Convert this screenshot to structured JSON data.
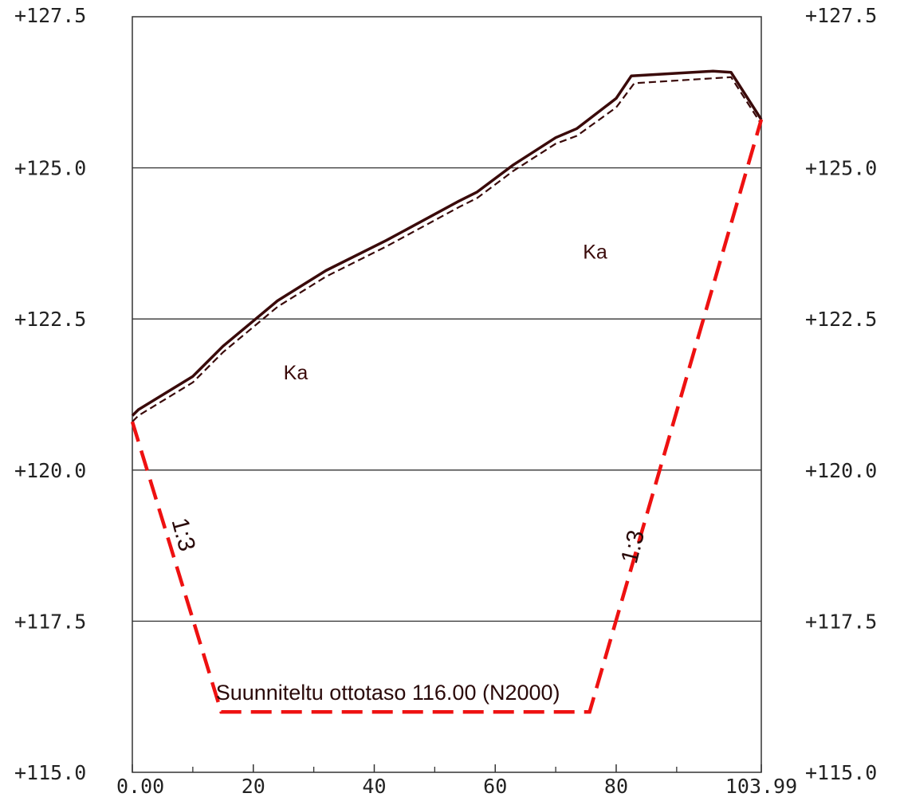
{
  "chart_data": {
    "type": "line",
    "x_range": [
      0,
      103.99
    ],
    "y_range": [
      115.0,
      127.5
    ],
    "y_ticks": [
      {
        "value": 127.5,
        "label": "+127.5"
      },
      {
        "value": 125.0,
        "label": "+125.0"
      },
      {
        "value": 122.5,
        "label": "+122.5"
      },
      {
        "value": 120.0,
        "label": "+120.0"
      },
      {
        "value": 117.5,
        "label": "+117.5"
      },
      {
        "value": 115.0,
        "label": "+115.0"
      }
    ],
    "x_ticks": [
      {
        "value": 0,
        "label": "0.00"
      },
      {
        "value": 20,
        "label": "20"
      },
      {
        "value": 40,
        "label": "40"
      },
      {
        "value": 60,
        "label": "60"
      },
      {
        "value": 80,
        "label": "80"
      },
      {
        "value": 103.99,
        "label": "103.99"
      }
    ],
    "x_minor_ticks": [
      10,
      30,
      50,
      70,
      90
    ],
    "ground_surface": {
      "x": [
        0,
        1,
        10,
        15,
        24,
        32,
        42,
        54,
        57,
        63,
        70,
        73.5,
        80,
        82.5,
        96,
        99,
        103.99
      ],
      "y": [
        120.9,
        121.0,
        121.55,
        122.05,
        122.8,
        123.3,
        123.8,
        124.45,
        124.6,
        125.05,
        125.5,
        125.65,
        126.15,
        126.52,
        126.6,
        126.58,
        125.8
      ]
    },
    "ground_surface_lower": {
      "x": [
        0,
        1,
        10,
        15,
        24,
        32,
        42,
        54,
        57,
        63,
        70,
        73.5,
        80,
        83,
        99,
        104
      ],
      "y": [
        120.8,
        120.9,
        121.45,
        121.95,
        122.7,
        123.2,
        123.7,
        124.35,
        124.5,
        124.95,
        125.4,
        125.53,
        126.0,
        126.4,
        126.5,
        125.72
      ]
    },
    "excavation_outline": {
      "x": [
        0,
        14.7,
        75.6,
        103.99
      ],
      "y": [
        120.8,
        116.0,
        116.0,
        125.8
      ]
    },
    "colors": {
      "ground": "#3a0a0a",
      "excavation": "#ee1111",
      "grid": "#333333"
    },
    "soil_labels": [
      {
        "text": "Ka",
        "x": 25,
        "y": 121.5
      },
      {
        "text": "Ka",
        "x": 74.5,
        "y": 123.5
      }
    ],
    "plan_level_label": {
      "text": "Suunniteltu ottotaso 116.00 (N2000)",
      "x": 13.8,
      "y": 116.2
    },
    "slope_labels": [
      {
        "text": "1:3",
        "x": 7.2,
        "y": 118.9,
        "rotation": 75
      },
      {
        "text": "1:3",
        "x": 84,
        "y": 118.7,
        "rotation": -76
      }
    ]
  }
}
